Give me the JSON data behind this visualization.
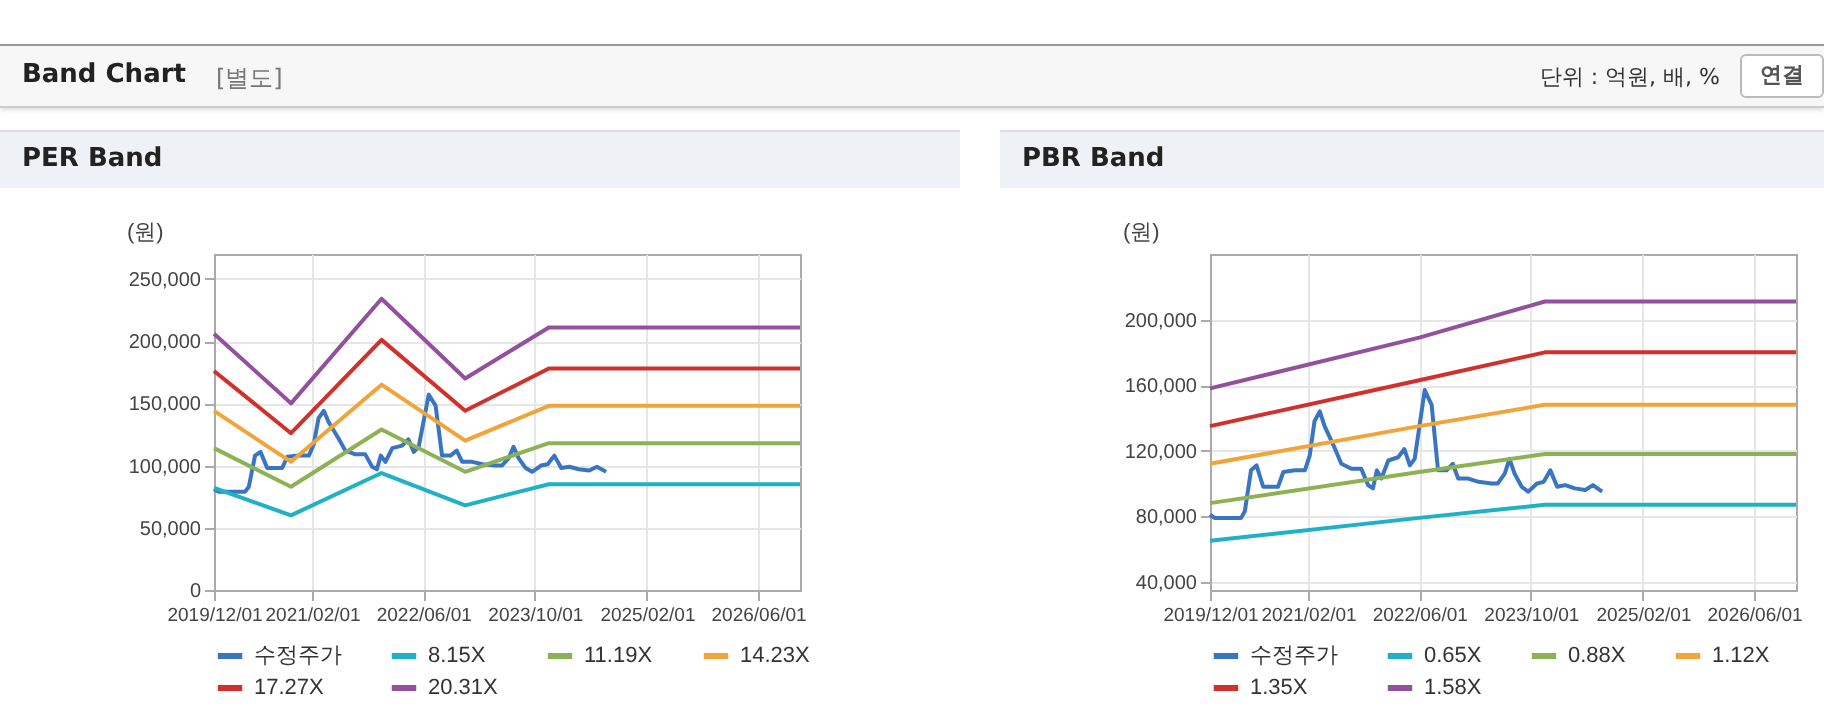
{
  "chart_data": [
    {
      "type": "other",
      "title": "Band Chart",
      "annotations": [
        "[별도]",
        "단위 : 억원, 배, %",
        "연결"
      ]
    },
    {
      "type": "line",
      "title": "PER Band",
      "ylabel": "(원)",
      "x": [
        "2019-12-01",
        "2020-11-01",
        "2021-12-01",
        "2022-12-01",
        "2023-12-01",
        "2026-12-01"
      ],
      "xlim": [
        "2019-12-01",
        "2026-12-01"
      ],
      "xticks": [
        {
          "value": "2019-12-01",
          "label": "2019/12/01"
        },
        {
          "value": "2021-02-01",
          "label": "2021/02/01"
        },
        {
          "value": "2022-06-01",
          "label": "2022/06/01"
        },
        {
          "value": "2023-10-01",
          "label": "2023/10/01"
        },
        {
          "value": "2025-02-01",
          "label": "2025/02/01"
        },
        {
          "value": "2026-06-01",
          "label": "2026/06/01"
        }
      ],
      "ylim": [
        0,
        270000
      ],
      "yticks": [
        {
          "value": 0,
          "label": "0"
        },
        {
          "value": 50000,
          "label": "50,000"
        },
        {
          "value": 100000,
          "label": "100,000"
        },
        {
          "value": 150000,
          "label": "150,000"
        },
        {
          "value": 200000,
          "label": "200,000"
        },
        {
          "value": 250000,
          "label": "250,000"
        }
      ],
      "grid": true,
      "legend": "bottom",
      "series": [
        {
          "name": "수정주가",
          "color": "#3a75c4",
          "x": [
            "2019-12-01",
            "2019-12-21",
            "2020-04-15",
            "2020-05-01",
            "2020-05-28",
            "2020-06-21",
            "2020-07-20",
            "2020-09-23",
            "2020-10-16",
            "2020-12-05",
            "2021-01-18",
            "2021-02-08",
            "2021-03-01",
            "2021-03-24",
            "2021-04-14",
            "2021-05-27",
            "2021-06-26",
            "2021-08-09",
            "2021-09-21",
            "2021-10-21",
            "2021-11-11",
            "2021-11-28",
            "2021-12-18",
            "2022-01-17",
            "2022-03-01",
            "2022-03-28",
            "2022-04-21",
            "2022-05-12",
            "2022-06-02",
            "2022-06-25",
            "2022-07-25",
            "2022-08-22",
            "2022-09-28",
            "2022-10-25",
            "2022-11-18",
            "2023-01-01",
            "2023-02-15",
            "2023-04-12",
            "2023-05-10",
            "2023-06-09",
            "2023-06-30",
            "2023-07-22",
            "2023-08-22",
            "2023-09-19",
            "2023-10-28",
            "2023-11-26",
            "2023-12-25",
            "2024-01-24",
            "2024-02-28",
            "2024-04-10",
            "2024-05-25",
            "2024-06-28",
            "2024-08-07"
          ],
          "values": [
            81000,
            79000,
            79000,
            83000,
            108000,
            111000,
            98000,
            98000,
            107000,
            108000,
            108000,
            117000,
            138000,
            144000,
            135000,
            122000,
            112000,
            109000,
            109000,
            99000,
            97000,
            108000,
            103000,
            114000,
            116000,
            121000,
            111000,
            115000,
            135000,
            157000,
            148000,
            108000,
            108000,
            112000,
            103000,
            103000,
            101000,
            100000,
            100000,
            106000,
            115000,
            106000,
            98000,
            95000,
            100000,
            101000,
            108000,
            98000,
            99000,
            97000,
            96000,
            99000,
            95000
          ]
        },
        {
          "name": "8.15X",
          "color": "#1fb1c6",
          "values": [
            82000,
            60000,
            94000,
            68000,
            85000,
            85000
          ]
        },
        {
          "name": "11.19X",
          "color": "#8db255",
          "values": [
            114000,
            83000,
            129000,
            95000,
            118000,
            118000
          ]
        },
        {
          "name": "14.23X",
          "color": "#f1a43a",
          "values": [
            144000,
            103000,
            165000,
            120000,
            148000,
            148000
          ]
        },
        {
          "name": "17.27X",
          "color": "#d0312d",
          "values": [
            176000,
            126000,
            201000,
            144000,
            178000,
            178000
          ]
        },
        {
          "name": "20.31X",
          "color": "#93509c",
          "values": [
            206000,
            150000,
            234000,
            170000,
            211000,
            211000
          ]
        }
      ]
    },
    {
      "type": "line",
      "title": "PBR Band",
      "ylabel": "(원)",
      "x": [
        "2019-12-01",
        "2022-06-01",
        "2023-12-01",
        "2026-12-01"
      ],
      "xlim": [
        "2019-12-01",
        "2026-12-01"
      ],
      "xticks": [
        {
          "value": "2019-12-01",
          "label": "2019/12/01"
        },
        {
          "value": "2021-02-01",
          "label": "2021/02/01"
        },
        {
          "value": "2022-06-01",
          "label": "2022/06/01"
        },
        {
          "value": "2023-10-01",
          "label": "2023/10/01"
        },
        {
          "value": "2025-02-01",
          "label": "2025/02/01"
        },
        {
          "value": "2026-06-01",
          "label": "2026/06/01"
        }
      ],
      "ylim": [
        35000,
        240000
      ],
      "yticks": [
        {
          "value": 40000,
          "label": "40,000"
        },
        {
          "value": 80000,
          "label": "80,000"
        },
        {
          "value": 120000,
          "label": "120,000"
        },
        {
          "value": 160000,
          "label": "160,000"
        },
        {
          "value": 200000,
          "label": "200,000"
        }
      ],
      "grid": true,
      "legend": "bottom",
      "series": [
        {
          "name": "수정주가",
          "color": "#3a75c4",
          "x": [
            "2019-12-01",
            "2019-12-21",
            "2020-04-15",
            "2020-05-01",
            "2020-05-28",
            "2020-06-21",
            "2020-07-20",
            "2020-09-23",
            "2020-10-16",
            "2020-12-05",
            "2021-01-18",
            "2021-02-08",
            "2021-03-01",
            "2021-03-24",
            "2021-04-14",
            "2021-05-27",
            "2021-06-26",
            "2021-08-09",
            "2021-09-21",
            "2021-10-21",
            "2021-11-11",
            "2021-11-28",
            "2021-12-18",
            "2022-01-17",
            "2022-03-01",
            "2022-03-28",
            "2022-04-21",
            "2022-05-12",
            "2022-06-02",
            "2022-06-25",
            "2022-07-25",
            "2022-08-22",
            "2022-09-28",
            "2022-10-25",
            "2022-11-18",
            "2023-01-01",
            "2023-02-15",
            "2023-04-12",
            "2023-05-10",
            "2023-06-09",
            "2023-06-30",
            "2023-07-22",
            "2023-08-22",
            "2023-09-19",
            "2023-10-28",
            "2023-11-26",
            "2023-12-25",
            "2024-01-24",
            "2024-02-28",
            "2024-04-10",
            "2024-05-25",
            "2024-06-28",
            "2024-08-07"
          ],
          "values": [
            81000,
            79000,
            79000,
            83000,
            108000,
            111000,
            98000,
            98000,
            107000,
            108000,
            108000,
            117000,
            138000,
            144000,
            135000,
            122000,
            112000,
            109000,
            109000,
            99000,
            97000,
            108000,
            103000,
            114000,
            116000,
            121000,
            111000,
            115000,
            135000,
            157000,
            148000,
            108000,
            108000,
            112000,
            103000,
            103000,
            101000,
            100000,
            100000,
            106000,
            115000,
            106000,
            98000,
            95000,
            100000,
            101000,
            108000,
            98000,
            99000,
            97000,
            96000,
            99000,
            95000
          ]
        },
        {
          "name": "0.65X",
          "color": "#1fb1c6",
          "values": [
            65000,
            79000,
            87000,
            87000
          ]
        },
        {
          "name": "0.88X",
          "color": "#8db255",
          "values": [
            88000,
            107000,
            118000,
            118000
          ]
        },
        {
          "name": "1.12X",
          "color": "#f1a43a",
          "values": [
            112000,
            135000,
            148000,
            148000
          ]
        },
        {
          "name": "1.35X",
          "color": "#d0312d",
          "values": [
            135000,
            163000,
            180000,
            180000
          ]
        },
        {
          "name": "1.58X",
          "color": "#93509c",
          "values": [
            158000,
            189000,
            211000,
            211000
          ]
        }
      ]
    }
  ]
}
